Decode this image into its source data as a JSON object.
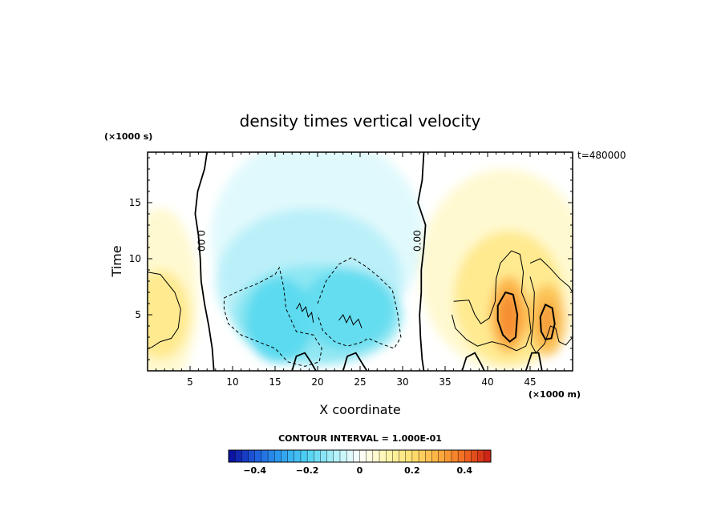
{
  "chart_data": {
    "type": "heatmap",
    "title": "density times vertical velocity",
    "xlabel": "X coordinate",
    "ylabel": "Time",
    "x_units": "(×1000 m)",
    "y_units": "(×1000 s)",
    "time_stamp": "t=480000",
    "xlim": [
      0,
      50
    ],
    "ylim": [
      0,
      19.5
    ],
    "x_ticks": [
      5,
      10,
      15,
      20,
      25,
      30,
      35,
      40,
      45
    ],
    "x_tick_labels": [
      "5",
      "10",
      "15",
      "20",
      "25",
      "30",
      "35",
      "40",
      "45"
    ],
    "y_ticks": [
      5,
      10,
      15
    ],
    "y_tick_labels": [
      "5",
      "10",
      "15"
    ],
    "contour_interval_text": "CONTOUR INTERVAL = 1.000E-01",
    "zero_contour_labels": [
      "0.00",
      "0.00"
    ],
    "colorbar": {
      "min": -0.5,
      "max": 0.5,
      "ticks": [
        -0.4,
        -0.2,
        0,
        0.2,
        0.4
      ],
      "tick_labels": [
        "−0.4",
        "−0.2",
        "0",
        "0.2",
        "0.4"
      ],
      "colors_low_to_high": [
        "#0a0a9a",
        "#1e5adc",
        "#2ea0f0",
        "#4fd2f2",
        "#aaf0f8",
        "#ffffff",
        "#fff6b0",
        "#ffe070",
        "#fdb040",
        "#f06a20",
        "#c81a14"
      ]
    },
    "features": [
      {
        "x": 2,
        "y": 5,
        "value": 0.12
      },
      {
        "x": 15.5,
        "y": 4,
        "value": -0.22
      },
      {
        "x": 23,
        "y": 5.5,
        "value": -0.2
      },
      {
        "x": 42.5,
        "y": 5,
        "value": 0.26
      },
      {
        "x": 47,
        "y": 4.5,
        "value": 0.22
      }
    ]
  }
}
